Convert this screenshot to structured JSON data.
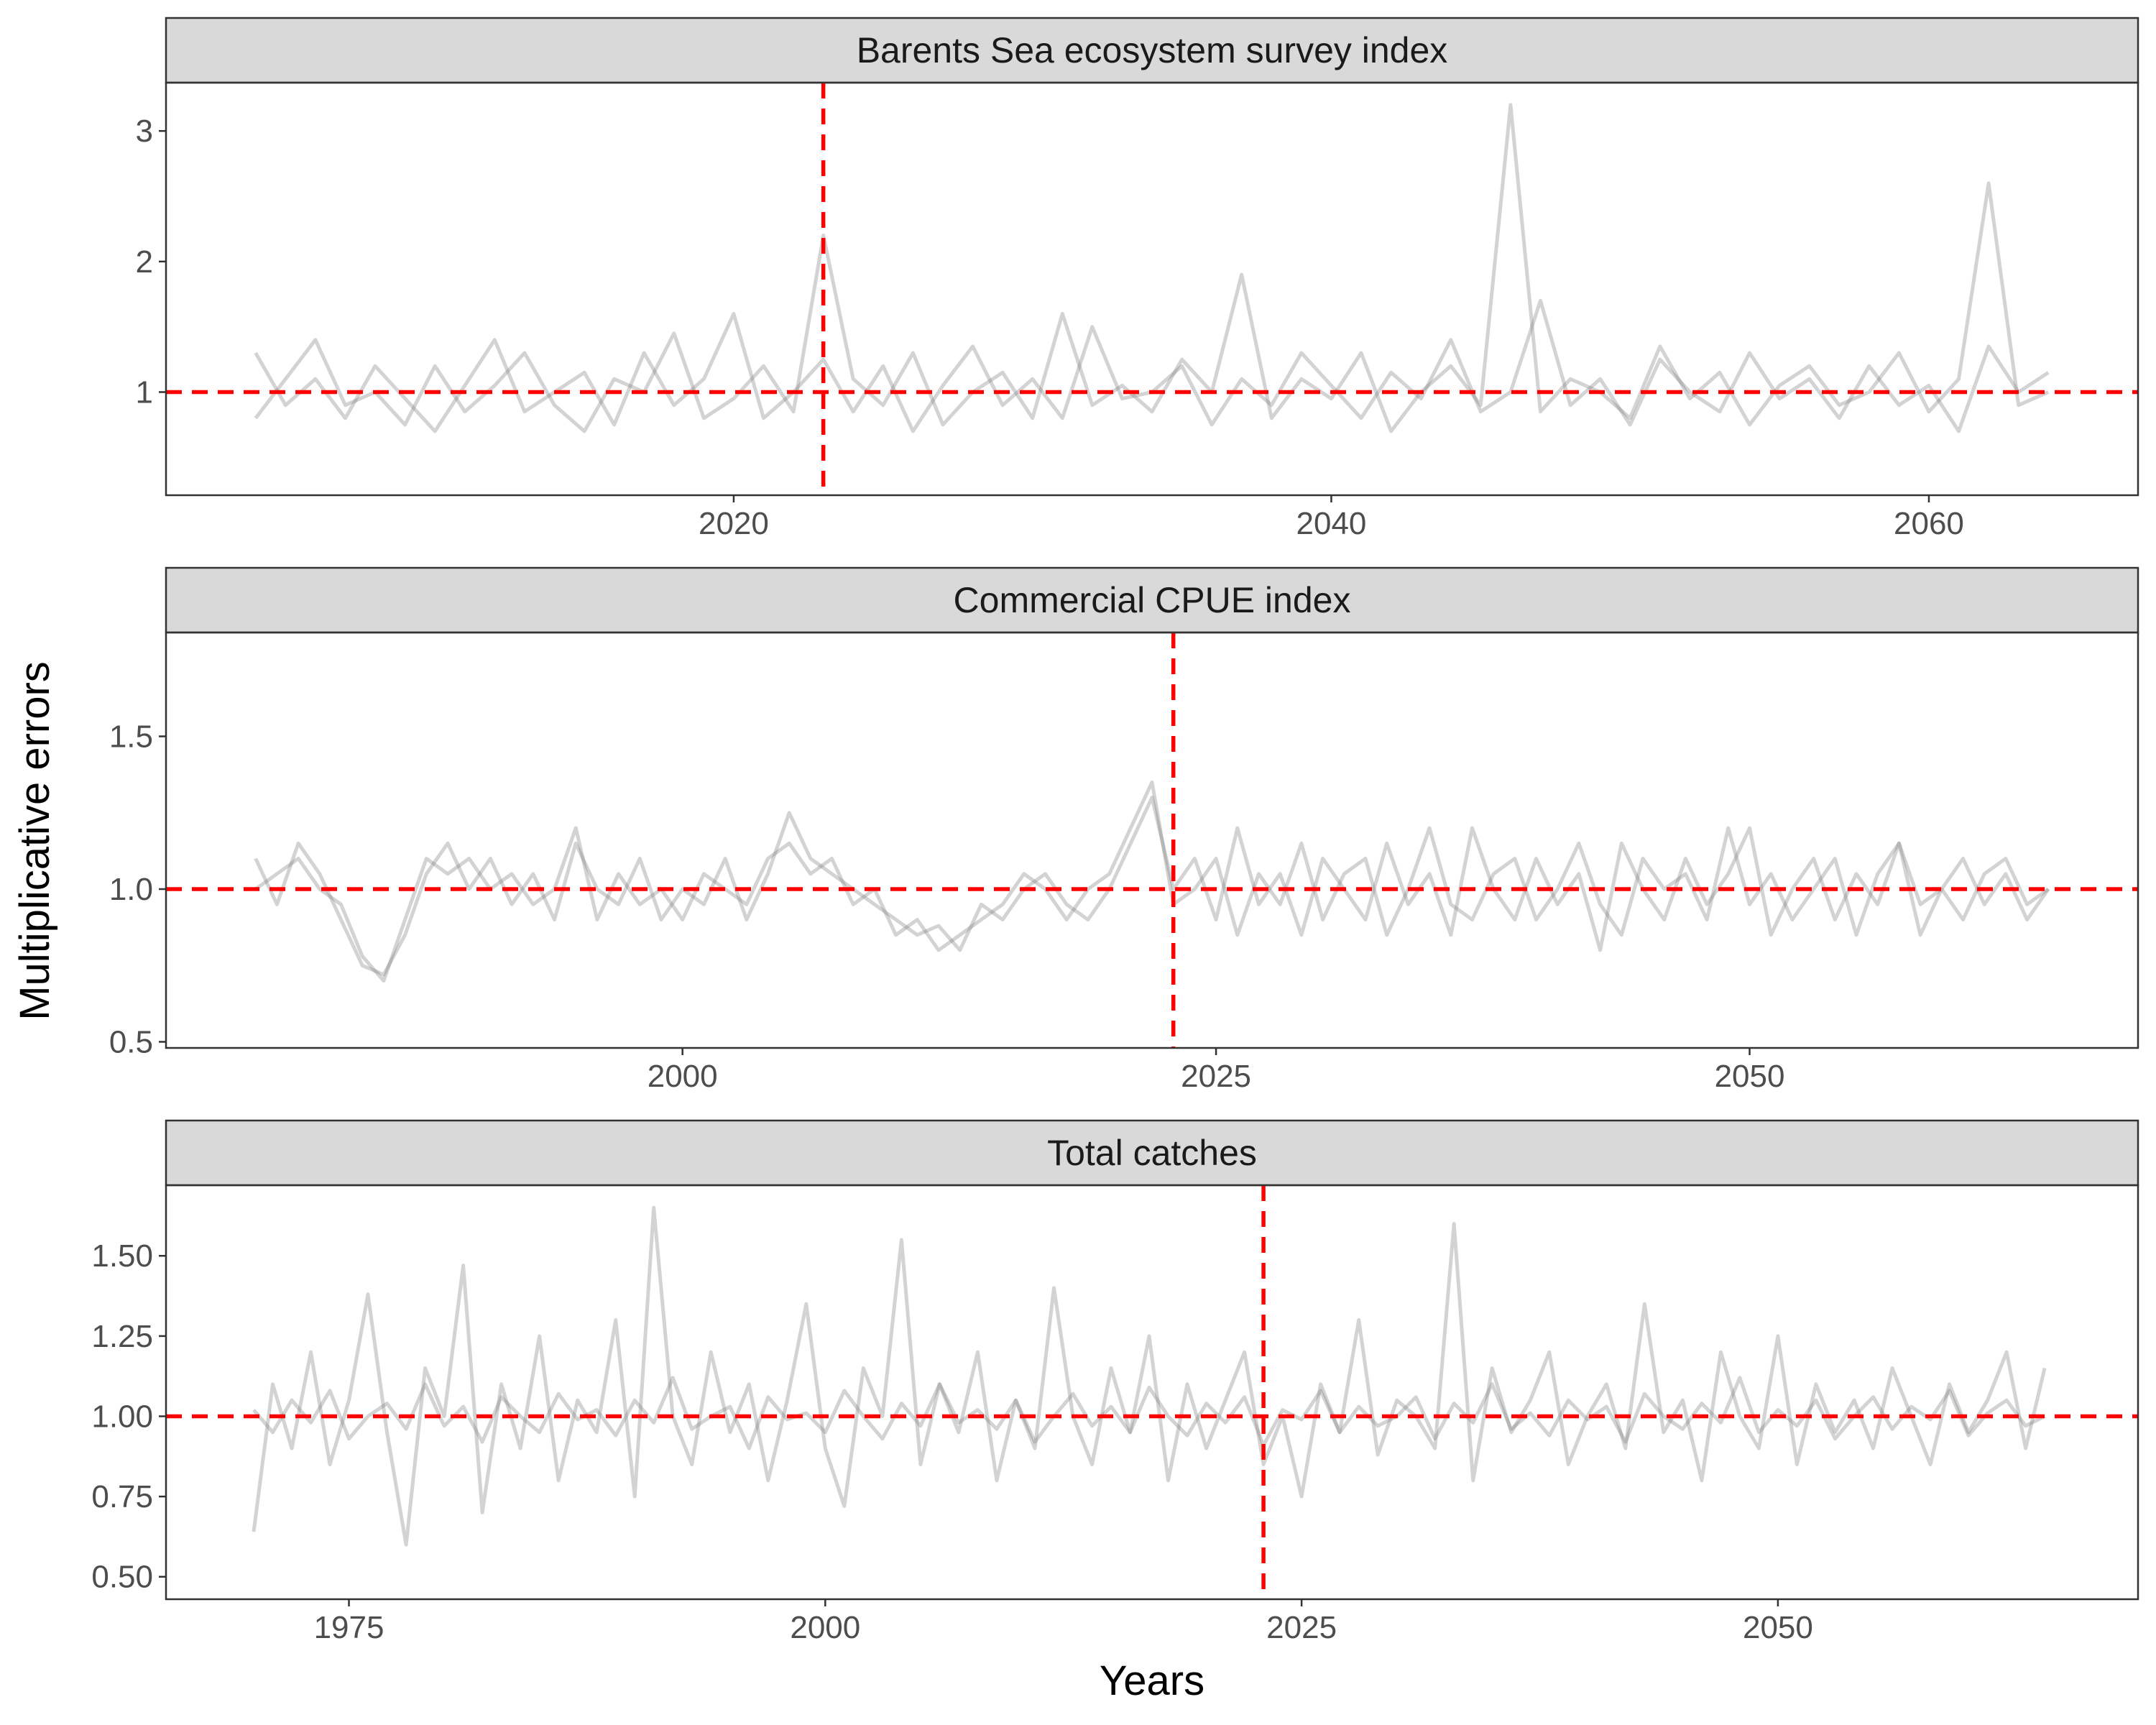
{
  "chart_data": {
    "type": "line",
    "xlabel": "Years",
    "ylabel": "Multiplicative errors",
    "grid": false,
    "legend": "none",
    "colors": {
      "series": "#808080",
      "reference": "#ff0000",
      "strip": "#d9d9d9"
    },
    "panels": [
      {
        "title": "Barents Sea ecosystem survey index",
        "xlim": [
          2001,
          2067
        ],
        "ylim": [
          0.21,
          3.37
        ],
        "xticks": [
          2020,
          2040,
          2060
        ],
        "yticks": [
          {
            "v": 1,
            "label": "1"
          },
          {
            "v": 2,
            "label": "2"
          },
          {
            "v": 3,
            "label": "3"
          }
        ],
        "reference_x": 2023,
        "reference_y": 1,
        "x_start": 2004,
        "series": [
          {
            "values": [
              1.3,
              0.9,
              1.1,
              0.8,
              1.2,
              0.95,
              0.7,
              1.05,
              1.4,
              0.85,
              1.0,
              1.15,
              0.75,
              1.3,
              0.9,
              1.1,
              1.6,
              0.8,
              1.0,
              1.25,
              0.85,
              1.2,
              0.7,
              1.05,
              1.35,
              0.9,
              1.1,
              0.8,
              1.5,
              0.95,
              1.0,
              1.2,
              0.75,
              1.1,
              0.9,
              1.3,
              1.05,
              0.8,
              1.15,
              0.95,
              1.4,
              0.85,
              1.0,
              1.7,
              0.9,
              1.1,
              0.75,
              1.25,
              1.0,
              0.85,
              1.3,
              0.95,
              1.1,
              0.8,
              1.2,
              0.9,
              1.05,
              0.7,
              1.35,
              1.0,
              1.15
            ]
          },
          {
            "values": [
              0.8,
              1.1,
              1.4,
              0.9,
              1.0,
              0.75,
              1.2,
              0.85,
              1.05,
              1.3,
              0.9,
              0.7,
              1.1,
              1.0,
              1.45,
              0.8,
              0.95,
              1.2,
              0.85,
              2.2,
              1.1,
              0.9,
              1.3,
              0.75,
              1.0,
              1.15,
              0.8,
              1.6,
              0.9,
              1.05,
              0.85,
              1.25,
              1.0,
              1.9,
              0.8,
              1.1,
              0.95,
              1.3,
              0.7,
              1.0,
              1.2,
              0.9,
              3.2,
              0.85,
              1.1,
              1.0,
              0.8,
              1.35,
              0.95,
              1.15,
              0.75,
              1.05,
              1.2,
              0.9,
              1.0,
              1.3,
              0.85,
              1.1,
              2.6,
              0.9,
              1.0
            ]
          }
        ]
      },
      {
        "title": "Commercial CPUE index",
        "xlim": [
          1975.8,
          2068.2
        ],
        "ylim": [
          0.48,
          1.84
        ],
        "xticks": [
          2000,
          2025,
          2050
        ],
        "yticks": [
          {
            "v": 0.5,
            "label": "0.5"
          },
          {
            "v": 1.0,
            "label": "1.0"
          },
          {
            "v": 1.5,
            "label": "1.5"
          }
        ],
        "reference_x": 2023,
        "reference_y": 1,
        "x_start": 1980,
        "series": [
          {
            "values": [
              1.1,
              0.95,
              1.15,
              1.05,
              0.9,
              0.75,
              0.72,
              0.85,
              1.05,
              1.15,
              1.0,
              1.1,
              0.95,
              1.05,
              0.9,
              1.15,
              1.0,
              0.95,
              1.1,
              0.9,
              1.0,
              0.95,
              1.1,
              0.9,
              1.05,
              1.25,
              1.1,
              1.05,
              1.0,
              0.95,
              0.9,
              0.85,
              0.88,
              0.8,
              0.95,
              0.9,
              1.0,
              1.05,
              0.95,
              0.9,
              1.0,
              1.15,
              1.3,
              1.0,
              1.1,
              0.9,
              1.2,
              0.95,
              1.05,
              0.85,
              1.1,
              1.0,
              0.9,
              1.15,
              0.95,
              1.05,
              0.85,
              1.2,
              1.0,
              0.9,
              1.1,
              0.95,
              1.05,
              0.8,
              1.15,
              1.0,
              0.9,
              1.1,
              0.95,
              1.05,
              1.2,
              0.85,
              1.0,
              1.1,
              0.9,
              1.05,
              0.95,
              1.15,
              0.85,
              1.0,
              1.1,
              0.95,
              1.05,
              0.9,
              1.0
            ]
          },
          {
            "values": [
              1.0,
              1.05,
              1.1,
              1.0,
              0.95,
              0.78,
              0.7,
              0.9,
              1.1,
              1.05,
              1.1,
              1.0,
              1.05,
              0.95,
              1.0,
              1.2,
              0.9,
              1.05,
              0.95,
              1.0,
              0.9,
              1.05,
              1.0,
              0.95,
              1.1,
              1.15,
              1.05,
              1.1,
              0.95,
              1.0,
              0.85,
              0.9,
              0.8,
              0.85,
              0.9,
              0.95,
              1.05,
              1.0,
              0.9,
              1.0,
              1.05,
              1.2,
              1.35,
              0.95,
              1.0,
              1.1,
              0.85,
              1.05,
              0.95,
              1.15,
              0.9,
              1.05,
              1.1,
              0.85,
              1.0,
              1.2,
              0.95,
              0.9,
              1.05,
              1.1,
              0.9,
              1.0,
              1.15,
              0.95,
              0.85,
              1.1,
              1.0,
              1.05,
              0.9,
              1.2,
              0.95,
              1.05,
              0.9,
              1.0,
              1.1,
              0.85,
              1.05,
              1.15,
              0.95,
              1.0,
              0.9,
              1.05,
              1.1,
              0.95,
              1.0
            ]
          }
        ]
      },
      {
        "title": "Total catches",
        "xlim": [
          1965.4,
          2068.9
        ],
        "ylim": [
          0.43,
          1.72
        ],
        "xticks": [
          1975,
          2000,
          2025,
          2050
        ],
        "yticks": [
          {
            "v": 0.5,
            "label": "0.50"
          },
          {
            "v": 0.75,
            "label": "0.75"
          },
          {
            "v": 1.0,
            "label": "1.00"
          },
          {
            "v": 1.25,
            "label": "1.25"
          },
          {
            "v": 1.5,
            "label": "1.50"
          }
        ],
        "reference_x": 2023,
        "reference_y": 1,
        "x_start": 1970,
        "series": [
          {
            "values": [
              1.02,
              0.95,
              1.05,
              0.98,
              1.08,
              0.93,
              1.0,
              1.04,
              0.96,
              1.1,
              0.97,
              1.03,
              0.92,
              1.06,
              1.0,
              0.95,
              1.07,
              0.99,
              1.02,
              0.94,
              1.05,
              0.98,
              1.12,
              0.96,
              1.0,
              1.03,
              0.9,
              1.06,
              0.99,
              1.01,
              0.95,
              1.08,
              1.0,
              0.93,
              1.04,
              0.97,
              1.1,
              0.98,
              1.02,
              0.96,
              1.05,
              0.92,
              1.0,
              1.07,
              0.97,
              1.03,
              0.95,
              1.09,
              1.0,
              0.94,
              1.04,
              0.98,
              1.06,
              0.91,
              1.02,
              0.99,
              1.08,
              0.95,
              1.03,
              0.97,
              1.0,
              1.06,
              0.93,
              1.04,
              0.98,
              1.1,
              0.96,
              1.01,
              0.94,
              1.05,
              0.99,
              1.03,
              0.92,
              1.07,
              1.0,
              0.96,
              1.04,
              0.98,
              1.12,
              0.95,
              1.02,
              0.97,
              1.05,
              0.93,
              1.0,
              1.06,
              0.96,
              1.03,
              0.99,
              1.08,
              0.94,
              1.01,
              1.05,
              0.97,
              1.0
            ]
          },
          {
            "values": [
              0.64,
              1.1,
              0.9,
              1.2,
              0.85,
              1.05,
              1.38,
              0.95,
              0.6,
              1.15,
              1.0,
              1.47,
              0.7,
              1.1,
              0.9,
              1.25,
              0.8,
              1.05,
              0.95,
              1.3,
              0.75,
              1.65,
              1.0,
              0.85,
              1.2,
              0.95,
              1.1,
              0.8,
              1.05,
              1.35,
              0.9,
              0.72,
              1.15,
              1.0,
              1.55,
              0.85,
              1.1,
              0.95,
              1.2,
              0.8,
              1.05,
              0.9,
              1.4,
              1.0,
              0.85,
              1.15,
              0.95,
              1.25,
              0.8,
              1.1,
              0.9,
              1.05,
              1.2,
              0.85,
              1.0,
              0.75,
              1.1,
              0.95,
              1.3,
              0.88,
              1.05,
              1.0,
              0.9,
              1.6,
              0.8,
              1.15,
              0.95,
              1.05,
              1.2,
              0.85,
              1.0,
              1.1,
              0.9,
              1.35,
              0.95,
              1.05,
              0.8,
              1.2,
              1.0,
              0.9,
              1.25,
              0.85,
              1.1,
              0.95,
              1.05,
              0.9,
              1.15,
              1.0,
              0.85,
              1.1,
              0.95,
              1.05,
              1.2,
              0.9,
              1.15
            ]
          }
        ]
      }
    ]
  }
}
